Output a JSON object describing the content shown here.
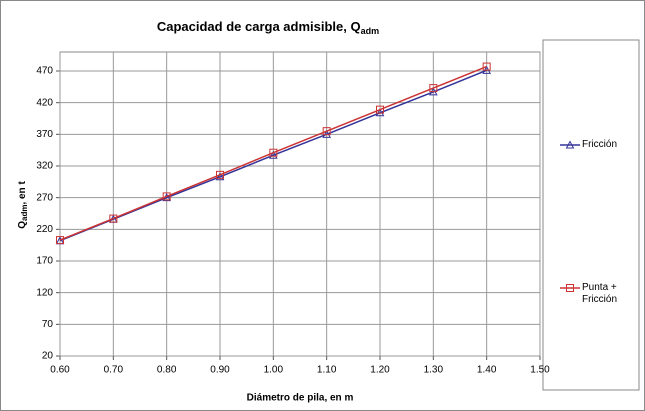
{
  "chart_data": {
    "type": "line",
    "title": {
      "text": "Capacidad de carga admisible, Q",
      "subscript": "adm"
    },
    "x_label": "Diámetro de pila, en m",
    "y_label": {
      "text": "Q",
      "subscript": "adm",
      "suffix": ", en t"
    },
    "x": [
      0.6,
      0.7,
      0.8,
      0.9,
      1.0,
      1.1,
      1.2,
      1.3,
      1.4
    ],
    "series": [
      {
        "name": "Fricción",
        "color": "#333399",
        "marker": "triangle",
        "values": [
          202,
          236,
          270,
          303,
          337,
          370,
          404,
          437,
          471
        ]
      },
      {
        "name": "Punta + Fricción",
        "color": "#cc3333",
        "marker": "square",
        "values": [
          203,
          237,
          272,
          306,
          341,
          375,
          409,
          443,
          477
        ]
      }
    ],
    "xlim": [
      0.6,
      1.5
    ],
    "xticks": [
      {
        "value": 0.6,
        "label": "0.60"
      },
      {
        "value": 0.7,
        "label": "0.70"
      },
      {
        "value": 0.8,
        "label": "0.80"
      },
      {
        "value": 0.9,
        "label": "0.90"
      },
      {
        "value": 1.0,
        "label": "1.00"
      },
      {
        "value": 1.1,
        "label": "1.10"
      },
      {
        "value": 1.2,
        "label": "1.20"
      },
      {
        "value": 1.3,
        "label": "1.30"
      },
      {
        "value": 1.4,
        "label": "1.40"
      },
      {
        "value": 1.5,
        "label": "1.50"
      }
    ],
    "ylim": [
      20,
      500
    ],
    "yticks": [
      20,
      70,
      120,
      170,
      220,
      270,
      320,
      370,
      420,
      470
    ],
    "grid": true
  }
}
